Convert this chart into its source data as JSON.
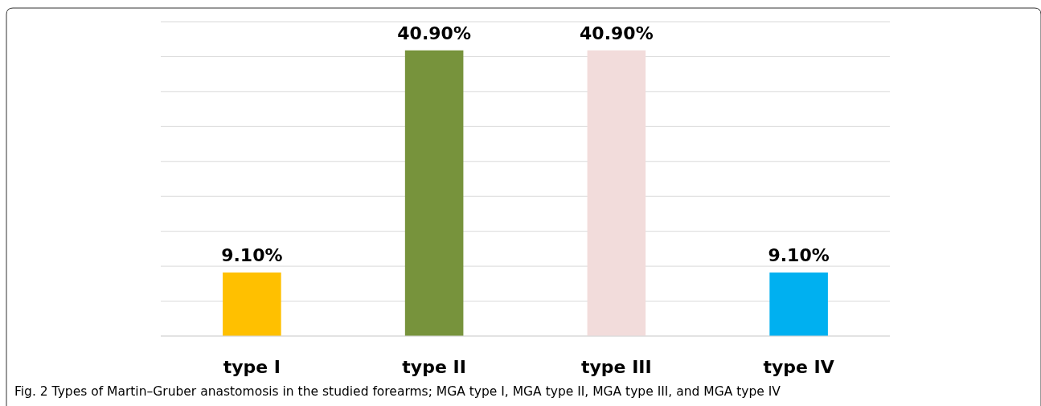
{
  "chart_data": {
    "type": "bar",
    "categories": [
      "type I",
      "type II",
      "type III",
      "type IV"
    ],
    "values": [
      9.1,
      40.9,
      40.9,
      9.1
    ],
    "colors": [
      "#ffc000",
      "#77933c",
      "#f2dcdb",
      "#00b0f0"
    ],
    "value_labels": [
      "9.10%",
      "40.90%",
      "40.90%",
      "9.10%"
    ],
    "ylim": [
      0,
      45
    ],
    "yticks": [
      {
        "value": 0,
        "label": null
      },
      {
        "value": 5,
        "label": null
      },
      {
        "value": 10,
        "label": null
      },
      {
        "value": 15,
        "label": null
      },
      {
        "value": 20,
        "label": null
      },
      {
        "value": 25,
        "label": null
      },
      {
        "value": 30,
        "label": null
      },
      {
        "value": 35,
        "label": null
      },
      {
        "value": 40,
        "label": null
      },
      {
        "value": 45,
        "label": null
      }
    ],
    "tick_labels": "x",
    "grid": "y",
    "annotations": [
      "Fig. 2  Types of Martin–Gruber anastomosis in the studied forearms; MGA type I, MGA type II, MGA type III, and MGA type IV"
    ]
  }
}
